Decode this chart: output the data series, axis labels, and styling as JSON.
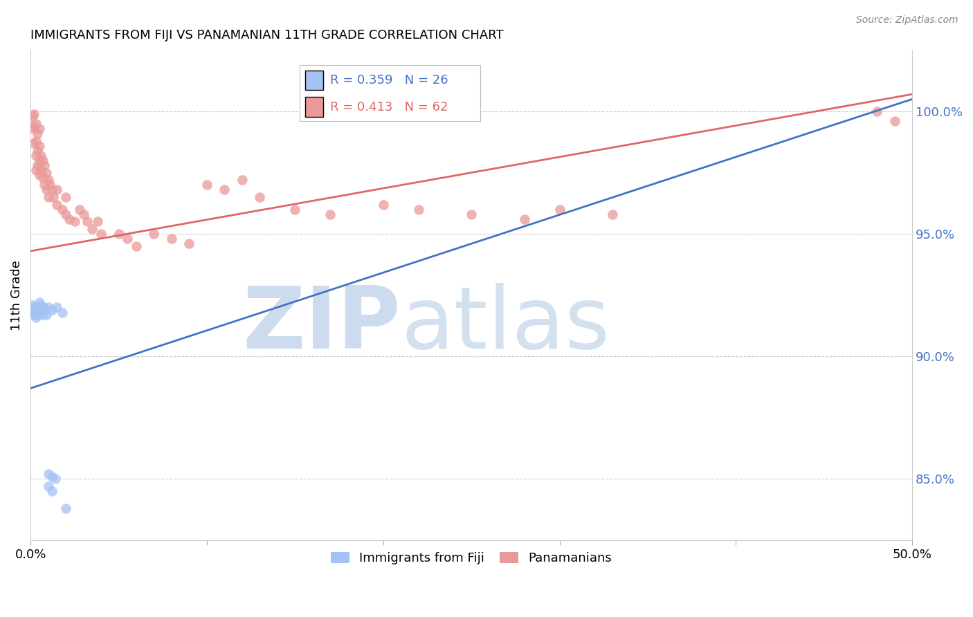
{
  "title": "IMMIGRANTS FROM FIJI VS PANAMANIAN 11TH GRADE CORRELATION CHART",
  "source": "Source: ZipAtlas.com",
  "ylabel": "11th Grade",
  "xlim": [
    0.0,
    0.5
  ],
  "ylim": [
    0.825,
    1.025
  ],
  "xticks": [
    0.0,
    0.1,
    0.2,
    0.3,
    0.4,
    0.5
  ],
  "xticklabels": [
    "0.0%",
    "",
    "",
    "",
    "",
    "50.0%"
  ],
  "yticks_right": [
    0.85,
    0.9,
    0.95,
    1.0
  ],
  "yticks_right_labels": [
    "85.0%",
    "90.0%",
    "95.0%",
    "100.0%"
  ],
  "fiji_color": "#a4c2f4",
  "panama_color": "#ea9999",
  "fiji_line_color": "#4472c4",
  "panama_line_color": "#e06666",
  "fiji_R": 0.359,
  "fiji_N": 26,
  "panama_R": 0.413,
  "panama_N": 62,
  "fiji_scatter_x": [
    0.001,
    0.001,
    0.002,
    0.002,
    0.003,
    0.003,
    0.004,
    0.004,
    0.005,
    0.005,
    0.006,
    0.006,
    0.007,
    0.007,
    0.008,
    0.009,
    0.01,
    0.012,
    0.015,
    0.018,
    0.01,
    0.012,
    0.014,
    0.01,
    0.012,
    0.02
  ],
  "fiji_scatter_y": [
    0.921,
    0.918,
    0.92,
    0.917,
    0.919,
    0.916,
    0.92,
    0.917,
    0.922,
    0.918,
    0.921,
    0.918,
    0.92,
    0.917,
    0.919,
    0.917,
    0.92,
    0.919,
    0.92,
    0.918,
    0.852,
    0.851,
    0.85,
    0.847,
    0.845,
    0.838
  ],
  "panama_scatter_x": [
    0.001,
    0.001,
    0.002,
    0.002,
    0.002,
    0.003,
    0.003,
    0.003,
    0.003,
    0.004,
    0.004,
    0.004,
    0.005,
    0.005,
    0.005,
    0.005,
    0.006,
    0.006,
    0.007,
    0.007,
    0.008,
    0.008,
    0.009,
    0.009,
    0.01,
    0.01,
    0.011,
    0.012,
    0.013,
    0.015,
    0.015,
    0.018,
    0.02,
    0.02,
    0.022,
    0.025,
    0.028,
    0.03,
    0.032,
    0.035,
    0.038,
    0.04,
    0.05,
    0.055,
    0.06,
    0.07,
    0.08,
    0.09,
    0.1,
    0.11,
    0.12,
    0.13,
    0.15,
    0.17,
    0.2,
    0.22,
    0.25,
    0.28,
    0.3,
    0.33,
    0.48,
    0.49
  ],
  "panama_scatter_y": [
    0.998,
    0.994,
    0.999,
    0.993,
    0.987,
    0.995,
    0.988,
    0.982,
    0.976,
    0.991,
    0.984,
    0.978,
    0.993,
    0.986,
    0.98,
    0.974,
    0.982,
    0.976,
    0.98,
    0.973,
    0.978,
    0.97,
    0.975,
    0.968,
    0.972,
    0.965,
    0.97,
    0.968,
    0.965,
    0.968,
    0.962,
    0.96,
    0.965,
    0.958,
    0.956,
    0.955,
    0.96,
    0.958,
    0.955,
    0.952,
    0.955,
    0.95,
    0.95,
    0.948,
    0.945,
    0.95,
    0.948,
    0.946,
    0.97,
    0.968,
    0.972,
    0.965,
    0.96,
    0.958,
    0.962,
    0.96,
    0.958,
    0.956,
    0.96,
    0.958,
    1.0,
    0.996
  ],
  "fiji_trend_x": [
    0.0,
    0.5
  ],
  "fiji_trend_y": [
    0.887,
    1.005
  ],
  "panama_trend_x": [
    0.0,
    0.5
  ],
  "panama_trend_y": [
    0.943,
    1.007
  ]
}
